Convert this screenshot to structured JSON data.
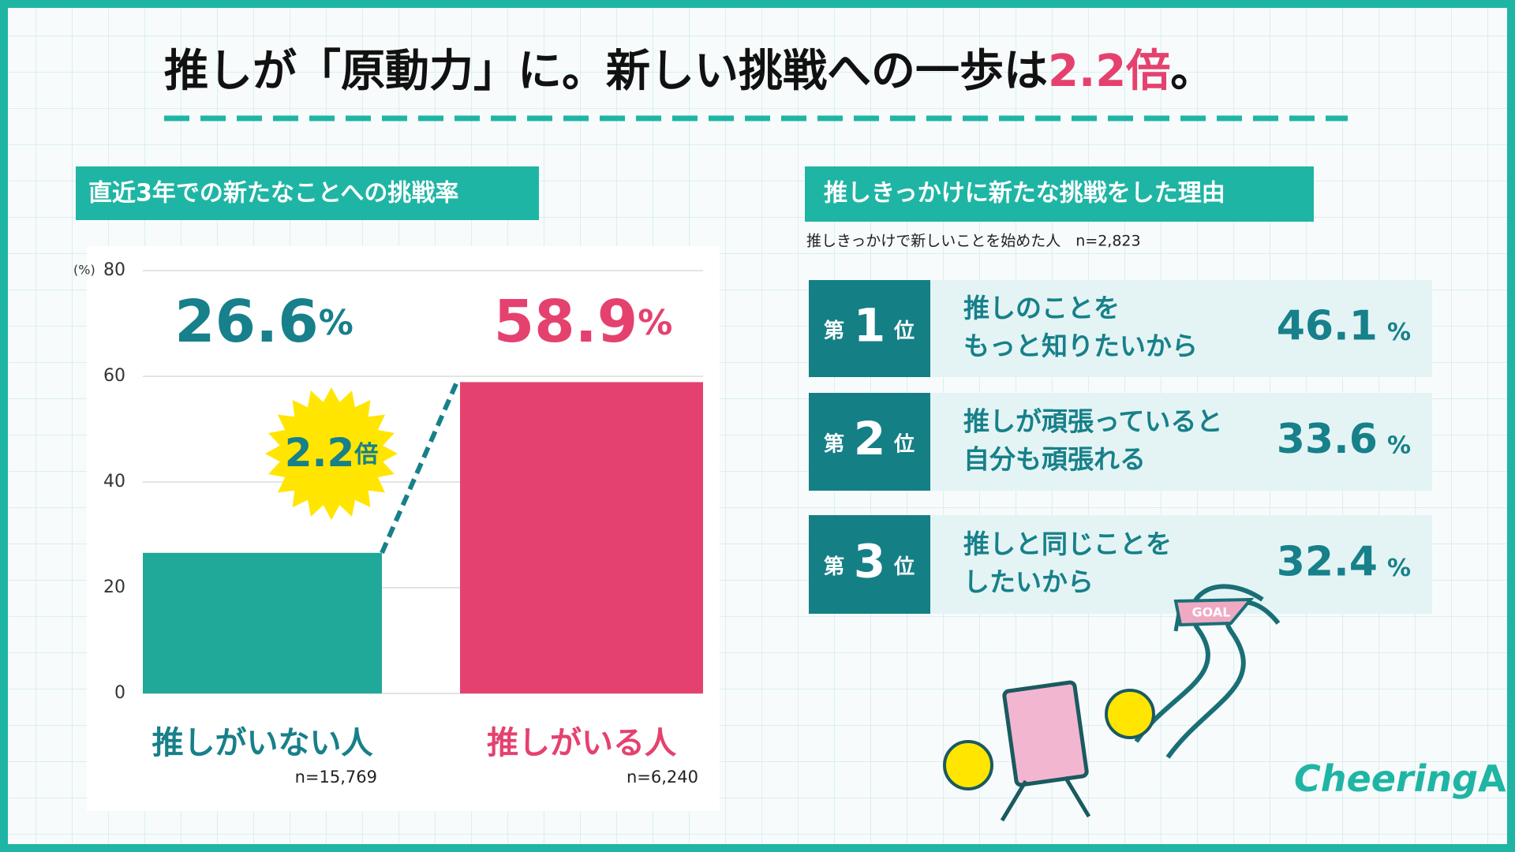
{
  "header": {
    "title": "推しが「原動力」に。新しい挑戦への一歩は",
    "highlight": "2.2倍",
    "title_end": "。"
  },
  "chart_data": {
    "type": "bar",
    "title": "直近3年での新たなことへの挑戦率",
    "y_label": "(%)",
    "categories": [
      "推しがいない人",
      "推しがいる人"
    ],
    "values": [
      26.6,
      58.9
    ],
    "value_labels": [
      "26.6%",
      "58.9%"
    ],
    "sample_sizes": [
      "n=15,769",
      "n=6,240"
    ],
    "colors": [
      "#20a898",
      "#e5416f"
    ],
    "ylim": [
      0,
      80
    ],
    "yticks": [
      0,
      20,
      40,
      60,
      80
    ],
    "grid": true,
    "annotation": "2.2倍"
  },
  "ranking": {
    "title": "推しきっかけに新たな挑戦をした理由",
    "note": "推しきっかけで新しいことを始めた人　n=2,823",
    "items": [
      {
        "prefix": "第",
        "rank": 1,
        "suffix": "位",
        "reason": [
          "推しのことを",
          "もっと知りたいから"
        ],
        "value": 46.1,
        "unit": "%"
      },
      {
        "prefix": "第",
        "rank": 2,
        "suffix": "位",
        "reason": [
          "推しが頑張っていると",
          "自分も頑張れる"
        ],
        "value": 33.6,
        "unit": "%"
      },
      {
        "prefix": "第",
        "rank": 3,
        "suffix": "位",
        "reason": [
          "推しと同じことを",
          "したいから"
        ],
        "value": 32.4,
        "unit": "%"
      }
    ]
  },
  "illustration": {
    "flag": "GOAL"
  },
  "logo": {
    "script": "Cheering",
    "suffix": "AD"
  }
}
